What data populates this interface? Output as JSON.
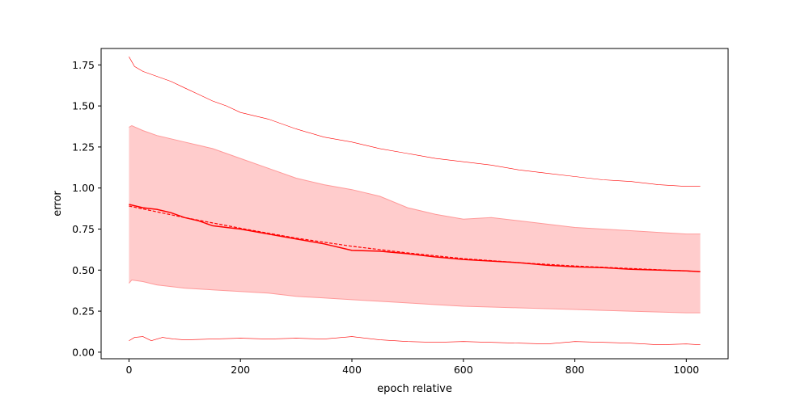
{
  "chart_data": {
    "type": "line",
    "title": "",
    "xlabel": "epoch relative",
    "ylabel": "error",
    "xlim": [
      -50,
      1075
    ],
    "ylim": [
      -0.04,
      1.85
    ],
    "grid": false,
    "legend": null,
    "x_ticks": [
      0,
      200,
      400,
      600,
      800,
      1000
    ],
    "x_tick_labels": [
      "0",
      "200",
      "400",
      "600",
      "800",
      "1000"
    ],
    "y_ticks": [
      0.0,
      0.25,
      0.5,
      0.75,
      1.0,
      1.25,
      1.5,
      1.75
    ],
    "y_tick_labels": [
      "0.00",
      "0.25",
      "0.50",
      "0.75",
      "1.00",
      "1.25",
      "1.50",
      "1.75"
    ],
    "colors": {
      "line": "#ff0000",
      "band_fill": "#ffcccc",
      "band_edge": "#ff9999"
    },
    "series": [
      {
        "role": "mean",
        "style": "solid",
        "x": [
          0,
          25,
          50,
          75,
          100,
          125,
          150,
          175,
          200,
          250,
          300,
          350,
          400,
          450,
          500,
          550,
          600,
          650,
          700,
          750,
          800,
          850,
          900,
          950,
          1000,
          1025
        ],
        "values": [
          0.9,
          0.88,
          0.87,
          0.85,
          0.82,
          0.8,
          0.77,
          0.76,
          0.75,
          0.72,
          0.69,
          0.66,
          0.62,
          0.615,
          0.6,
          0.58,
          0.565,
          0.555,
          0.545,
          0.53,
          0.52,
          0.515,
          0.505,
          0.5,
          0.495,
          0.49
        ]
      },
      {
        "role": "fit",
        "style": "dashed",
        "x": [
          0,
          100,
          200,
          300,
          400,
          500,
          600,
          700,
          800,
          900,
          1000,
          1025
        ],
        "values": [
          0.89,
          0.82,
          0.755,
          0.695,
          0.645,
          0.605,
          0.57,
          0.545,
          0.525,
          0.51,
          0.495,
          0.49
        ]
      },
      {
        "role": "band_upper",
        "x": [
          0,
          5,
          25,
          50,
          100,
          150,
          200,
          250,
          300,
          350,
          400,
          450,
          500,
          550,
          600,
          650,
          700,
          750,
          800,
          850,
          900,
          950,
          1000,
          1025
        ],
        "values": [
          1.37,
          1.38,
          1.35,
          1.32,
          1.28,
          1.24,
          1.18,
          1.12,
          1.06,
          1.02,
          0.99,
          0.95,
          0.88,
          0.84,
          0.81,
          0.82,
          0.8,
          0.78,
          0.76,
          0.75,
          0.74,
          0.73,
          0.72,
          0.72
        ]
      },
      {
        "role": "band_lower",
        "x": [
          0,
          5,
          25,
          50,
          100,
          150,
          200,
          250,
          300,
          350,
          400,
          450,
          500,
          550,
          600,
          650,
          700,
          750,
          800,
          850,
          900,
          950,
          1000,
          1025
        ],
        "values": [
          0.42,
          0.44,
          0.43,
          0.41,
          0.39,
          0.38,
          0.37,
          0.36,
          0.34,
          0.33,
          0.32,
          0.31,
          0.3,
          0.29,
          0.28,
          0.275,
          0.27,
          0.265,
          0.26,
          0.255,
          0.25,
          0.245,
          0.24,
          0.24
        ]
      },
      {
        "role": "max",
        "style": "thin",
        "x": [
          0,
          10,
          25,
          50,
          75,
          100,
          125,
          150,
          175,
          200,
          250,
          300,
          350,
          400,
          450,
          500,
          550,
          600,
          650,
          700,
          750,
          800,
          850,
          900,
          950,
          1000,
          1025
        ],
        "values": [
          1.8,
          1.74,
          1.71,
          1.68,
          1.65,
          1.61,
          1.57,
          1.53,
          1.5,
          1.46,
          1.42,
          1.36,
          1.31,
          1.28,
          1.24,
          1.21,
          1.18,
          1.16,
          1.14,
          1.11,
          1.09,
          1.07,
          1.05,
          1.04,
          1.02,
          1.01,
          1.01
        ]
      },
      {
        "role": "min",
        "style": "thin",
        "x": [
          0,
          10,
          25,
          40,
          60,
          80,
          100,
          150,
          200,
          250,
          300,
          350,
          400,
          450,
          500,
          550,
          600,
          650,
          700,
          750,
          800,
          850,
          900,
          950,
          1000,
          1025
        ],
        "values": [
          0.07,
          0.09,
          0.095,
          0.07,
          0.09,
          0.08,
          0.075,
          0.08,
          0.085,
          0.08,
          0.085,
          0.08,
          0.095,
          0.075,
          0.065,
          0.06,
          0.065,
          0.06,
          0.055,
          0.05,
          0.065,
          0.06,
          0.055,
          0.045,
          0.05,
          0.045
        ]
      }
    ]
  }
}
